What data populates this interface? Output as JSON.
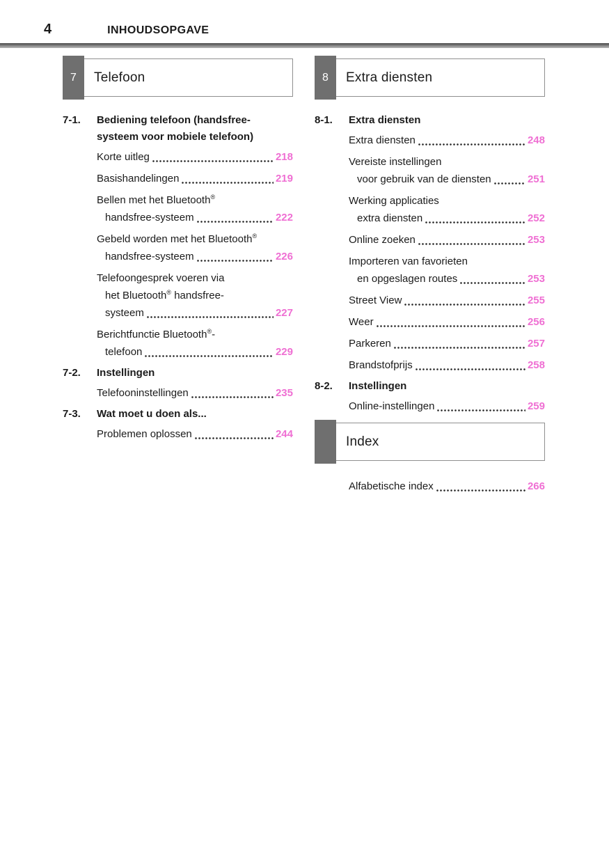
{
  "page": {
    "number": "4",
    "header_title": "INHOUDSOPGAVE"
  },
  "colors": {
    "accent_pink": "#ef6fd3",
    "badge_gray": "#6f6f6f"
  },
  "columns": [
    {
      "box": {
        "number": "7",
        "title": "Telefoon"
      },
      "sections": [
        {
          "id": "7-1.",
          "title_lines": [
            "Bediening telefoon (handsfree-",
            "systeem voor mobiele telefoon)"
          ],
          "entries": [
            {
              "lines": [
                "Korte uitleg"
              ],
              "page": "218"
            },
            {
              "lines": [
                "Basishandelingen"
              ],
              "page": "219"
            },
            {
              "lines": [
                "Bellen met het Bluetooth®",
                "handsfree-systeem"
              ],
              "page": "222"
            },
            {
              "lines": [
                "Gebeld worden met het Bluetooth®",
                "handsfree-systeem"
              ],
              "page": "226"
            },
            {
              "lines": [
                "Telefoongesprek voeren via",
                "het Bluetooth® handsfree-",
                "systeem"
              ],
              "page": "227"
            },
            {
              "lines": [
                "Berichtfunctie Bluetooth®-",
                "telefoon"
              ],
              "page": "229"
            }
          ]
        },
        {
          "id": "7-2.",
          "title_lines": [
            "Instellingen"
          ],
          "entries": [
            {
              "lines": [
                "Telefooninstellingen"
              ],
              "page": "235"
            }
          ]
        },
        {
          "id": "7-3.",
          "title_lines": [
            "Wat moet u doen als..."
          ],
          "entries": [
            {
              "lines": [
                "Problemen oplossen"
              ],
              "page": "244"
            }
          ]
        }
      ]
    },
    {
      "box": {
        "number": "8",
        "title": "Extra diensten"
      },
      "sections": [
        {
          "id": "8-1.",
          "title_lines": [
            "Extra diensten"
          ],
          "entries": [
            {
              "lines": [
                "Extra diensten"
              ],
              "page": "248"
            },
            {
              "lines": [
                "Vereiste instellingen",
                "voor gebruik van de diensten"
              ],
              "page": "251"
            },
            {
              "lines": [
                "Werking applicaties",
                "extra diensten"
              ],
              "page": "252"
            },
            {
              "lines": [
                "Online zoeken"
              ],
              "page": "253"
            },
            {
              "lines": [
                "Importeren van favorieten",
                "en opgeslagen routes"
              ],
              "page": "253"
            },
            {
              "lines": [
                "Street View"
              ],
              "page": "255"
            },
            {
              "lines": [
                "Weer"
              ],
              "page": "256"
            },
            {
              "lines": [
                "Parkeren"
              ],
              "page": "257"
            },
            {
              "lines": [
                "Brandstofprijs"
              ],
              "page": "258"
            }
          ]
        },
        {
          "id": "8-2.",
          "title_lines": [
            "Instellingen"
          ],
          "entries": [
            {
              "lines": [
                "Online-instellingen"
              ],
              "page": "259"
            }
          ]
        }
      ],
      "footer_box": {
        "number": "",
        "title": "Index"
      },
      "footer_entries": [
        {
          "lines": [
            "Alfabetische index"
          ],
          "page": "266"
        }
      ]
    }
  ]
}
